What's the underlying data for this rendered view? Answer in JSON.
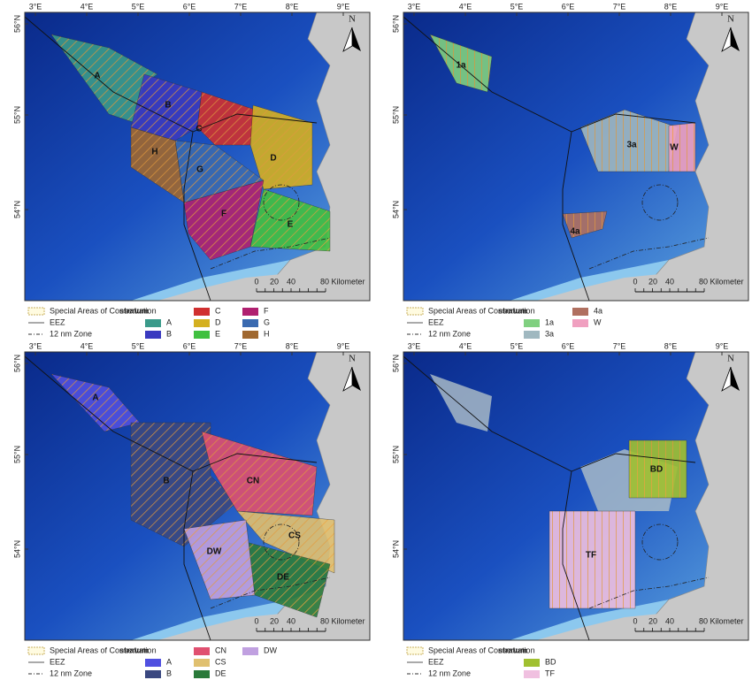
{
  "axes": {
    "longitude": [
      "3°E",
      "4°E",
      "5°E",
      "6°E",
      "7°E",
      "8°E",
      "9°E"
    ],
    "latitude": [
      "56°N",
      "55°N",
      "54°N"
    ]
  },
  "north": "N",
  "scale": [
    "0",
    "20",
    "40",
    "80 Kilometer"
  ],
  "legend": {
    "sac": "Special Areas of Conservation",
    "eez": "EEZ",
    "zone": "12 nm Zone",
    "stratum": "stratum"
  },
  "panels": [
    {
      "strata": [
        {
          "label": "A",
          "color": "#3a9a8a"
        },
        {
          "label": "B",
          "color": "#3a3ac0"
        },
        {
          "label": "C",
          "color": "#d03030"
        },
        {
          "label": "D",
          "color": "#d4b020"
        },
        {
          "label": "E",
          "color": "#40c040"
        },
        {
          "label": "F",
          "color": "#b02070"
        },
        {
          "label": "G",
          "color": "#3a6ab0"
        },
        {
          "label": "H",
          "color": "#a06830"
        }
      ]
    },
    {
      "strata": [
        {
          "label": "1a",
          "color": "#80d080"
        },
        {
          "label": "3a",
          "color": "#a0b8c0"
        },
        {
          "label": "4a",
          "color": "#b07060"
        },
        {
          "label": "W",
          "color": "#f0a0c0"
        }
      ]
    },
    {
      "strata": [
        {
          "label": "A",
          "color": "#5050e0"
        },
        {
          "label": "B",
          "color": "#3a4880"
        },
        {
          "label": "CN",
          "color": "#e05070"
        },
        {
          "label": "CS",
          "color": "#e0c070"
        },
        {
          "label": "DE",
          "color": "#2a7a3a"
        },
        {
          "label": "DW",
          "color": "#c0a0e0"
        }
      ]
    },
    {
      "strata": [
        {
          "label": "BD",
          "color": "#a0c030"
        },
        {
          "label": "TF",
          "color": "#f0c0e0"
        }
      ]
    }
  ]
}
